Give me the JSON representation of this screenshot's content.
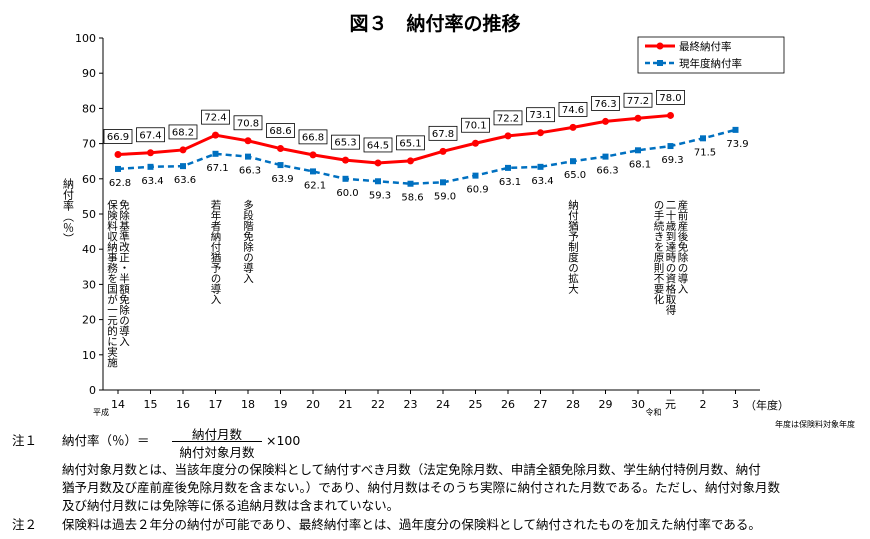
{
  "chart_data": {
    "type": "line",
    "title": "図３　納付率の推移",
    "ylabel": "納付率（％）",
    "xlabel": "（年度）",
    "x_note": "年度は保険料対象年度",
    "era_labels": [
      "平成",
      "令和"
    ],
    "ylim": [
      0,
      100
    ],
    "yticks": [
      "0",
      "10",
      "20",
      "30",
      "40",
      "50",
      "60",
      "70",
      "80",
      "90",
      "100"
    ],
    "categories": [
      "14",
      "15",
      "16",
      "17",
      "18",
      "19",
      "20",
      "21",
      "22",
      "23",
      "24",
      "25",
      "26",
      "27",
      "28",
      "29",
      "30",
      "元",
      "2",
      "3"
    ],
    "series": [
      {
        "name": "最終納付率",
        "color": "#ff0000",
        "values": [
          66.9,
          67.4,
          68.2,
          72.4,
          70.8,
          68.6,
          66.8,
          65.3,
          64.5,
          65.1,
          67.8,
          70.1,
          72.2,
          73.1,
          74.6,
          76.3,
          77.2,
          78.0,
          null,
          null
        ],
        "labels": [
          "66.9",
          "67.4",
          "68.2",
          "72.4",
          "70.8",
          "68.6",
          "66.8",
          "65.3",
          "64.5",
          "65.1",
          "67.8",
          "70.1",
          "72.2",
          "73.1",
          "74.6",
          "76.3",
          "77.2",
          "78.0",
          "",
          ""
        ]
      },
      {
        "name": "現年度納付率",
        "color": "#0070c0",
        "values": [
          62.8,
          63.4,
          63.6,
          67.1,
          66.3,
          63.9,
          62.1,
          60.0,
          59.3,
          58.6,
          59.0,
          60.9,
          63.1,
          63.4,
          65.0,
          66.3,
          68.1,
          69.3,
          71.5,
          73.9
        ],
        "labels": [
          "62.8",
          "63.4",
          "63.6",
          "67.1",
          "66.3",
          "63.9",
          "62.1",
          "60.0",
          "59.3",
          "58.6",
          "59.0",
          "60.9",
          "63.1",
          "63.4",
          "65.0",
          "66.3",
          "68.1",
          "69.3",
          "71.5",
          "73.9"
        ]
      }
    ],
    "annotations": [
      {
        "at": "14",
        "lines": [
          "免除基準改正・半額免除の導入",
          "保険料収納事務を国が一元的に実施"
        ]
      },
      {
        "at": "17",
        "lines": [
          "若年者納付猶予の導入"
        ]
      },
      {
        "at": "18",
        "lines": [
          "多段階免除の導入"
        ]
      },
      {
        "at": "28",
        "lines": [
          "納付猶予制度の拡大"
        ]
      },
      {
        "at": "元",
        "lines": [
          "産前産後免除の導入",
          "二十歳到達時の資格取得",
          "の手続きを原則不要化"
        ]
      }
    ],
    "legend_position": "top-right",
    "grid": false
  },
  "notes": {
    "note1_label": "注１",
    "note1_formula_lhs": "納付率（％）＝",
    "note1_numerator": "納付月数",
    "note1_denominator": "納付対象月数",
    "note1_times": "×100",
    "note1_line1": "納付対象月数とは、当該年度分の保険料として納付すべき月数（法定免除月数、申請全額免除月数、学生納付特例月数、納付",
    "note1_line2": "猶予月数及び産前産後免除月数を含まない。）であり、納付月数はそのうち実際に納付された月数である。ただし、納付対象月数",
    "note1_line3": "及び納付月数には免除等に係る追納月数は含まれていない。",
    "note2_label": "注２",
    "note2_text": "保険料は過去２年分の納付が可能であり、最終納付率とは、過年度分の保険料として納付されたものを加えた納付率である。"
  }
}
